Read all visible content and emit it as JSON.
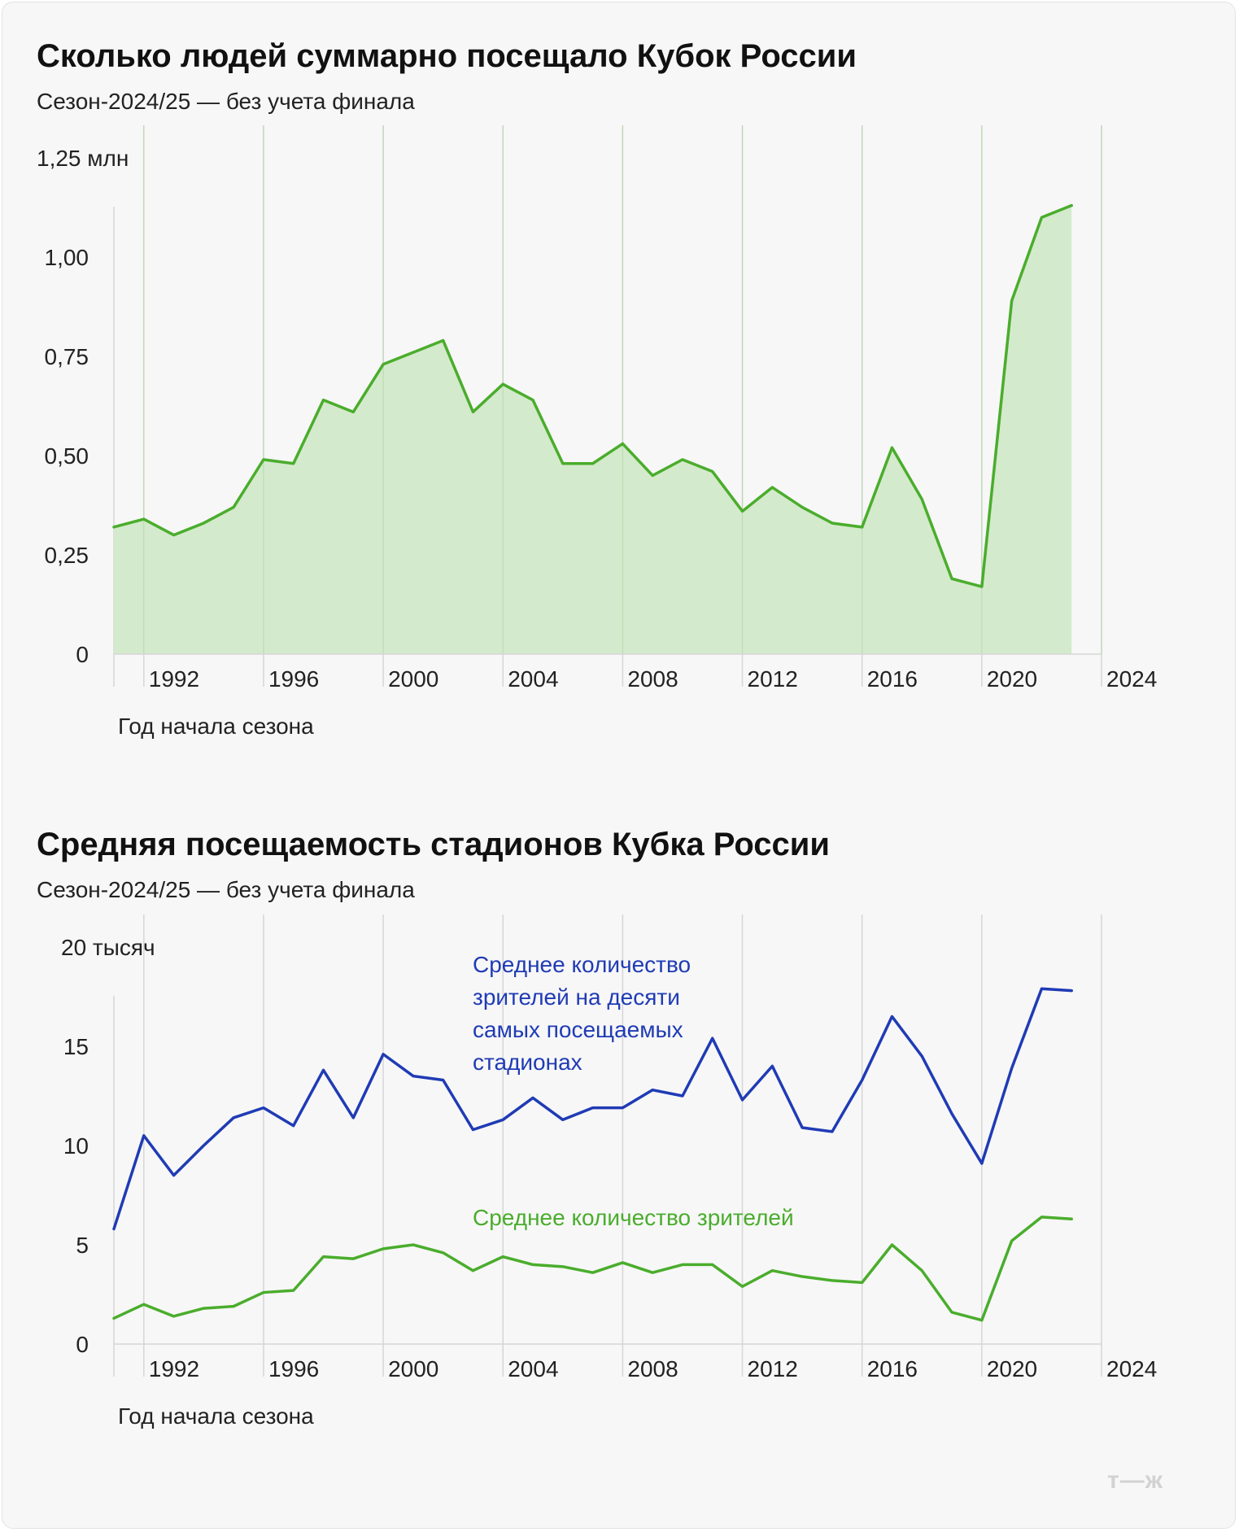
{
  "chart_data": [
    {
      "type": "area",
      "title": "Сколько людей суммарно посещало Кубок России",
      "subtitle": "Сезон-2024/25 — без учета финала",
      "xlabel": "Год начала сезона",
      "ylabel": "",
      "y_unit_label": "1,25 млн",
      "y_ticks": [
        "0",
        "0,25",
        "0,50",
        "0,75",
        "1,00"
      ],
      "y_tick_values": [
        0,
        0.25,
        0.5,
        0.75,
        1.0
      ],
      "x_ticks": [
        "1992",
        "1996",
        "2000",
        "2004",
        "2008",
        "2012",
        "2016",
        "2020",
        "2024"
      ],
      "x_tick_values": [
        1992,
        1996,
        2000,
        2004,
        2008,
        2012,
        2016,
        2020,
        2024
      ],
      "xlim": [
        1991,
        2024
      ],
      "ylim": [
        0,
        1.25
      ],
      "grid": "vertical",
      "color": "#4aad2c",
      "fill_color": "#d4eacc",
      "series": [
        {
          "x": [
            1991,
            1992,
            1993,
            1994,
            1995,
            1996,
            1997,
            1998,
            1999,
            2000,
            2001,
            2002,
            2003,
            2004,
            2005,
            2006,
            2007,
            2008,
            2009,
            2010,
            2011,
            2012,
            2013,
            2014,
            2015,
            2016,
            2017,
            2018,
            2019,
            2020,
            2021,
            2022,
            2023
          ],
          "values": [
            0.32,
            0.34,
            0.3,
            0.33,
            0.37,
            0.49,
            0.48,
            0.64,
            0.61,
            0.73,
            0.76,
            0.79,
            0.61,
            0.68,
            0.64,
            0.48,
            0.48,
            0.53,
            0.45,
            0.49,
            0.46,
            0.36,
            0.42,
            0.37,
            0.33,
            0.32,
            0.52,
            0.39,
            0.19,
            0.17,
            0.89,
            1.1,
            1.13
          ]
        }
      ]
    },
    {
      "type": "line",
      "title": "Средняя посещаемость стадионов Кубка России",
      "subtitle": "Сезон-2024/25 — без учета финала",
      "xlabel": "Год начала сезона",
      "ylabel": "",
      "y_unit_label": "20 тысяч",
      "y_ticks": [
        "0",
        "5",
        "10",
        "15"
      ],
      "y_tick_values": [
        0,
        5,
        10,
        15
      ],
      "x_ticks": [
        "1992",
        "1996",
        "2000",
        "2004",
        "2008",
        "2012",
        "2016",
        "2020",
        "2024"
      ],
      "x_tick_values": [
        1992,
        1996,
        2000,
        2004,
        2008,
        2012,
        2016,
        2020,
        2024
      ],
      "xlim": [
        1991,
        2024
      ],
      "ylim": [
        0,
        20
      ],
      "grid": "vertical",
      "series": [
        {
          "name": "Среднее количество зрителей на десяти самых посещаемых стадионах",
          "label_lines": [
            "Среднее количество",
            "зрителей на десяти",
            "самых посещаемых",
            "стадионах"
          ],
          "color": "#1f3bb5",
          "x": [
            1991,
            1992,
            1993,
            1994,
            1995,
            1996,
            1997,
            1998,
            1999,
            2000,
            2001,
            2002,
            2003,
            2004,
            2005,
            2006,
            2007,
            2008,
            2009,
            2010,
            2011,
            2012,
            2013,
            2014,
            2015,
            2016,
            2017,
            2018,
            2019,
            2020,
            2021,
            2022,
            2023
          ],
          "values": [
            5.8,
            10.5,
            8.5,
            10.0,
            11.4,
            11.9,
            11.0,
            13.8,
            11.4,
            14.6,
            13.5,
            13.3,
            10.8,
            11.3,
            12.4,
            11.3,
            11.9,
            11.9,
            12.8,
            12.5,
            15.4,
            12.3,
            14.0,
            10.9,
            10.7,
            13.3,
            16.5,
            14.5,
            11.6,
            9.1,
            13.9,
            17.9,
            17.8
          ]
        },
        {
          "name": "Среднее количество зрителей",
          "label_lines": [
            "Среднее количество зрителей"
          ],
          "color": "#4aad2c",
          "x": [
            1991,
            1992,
            1993,
            1994,
            1995,
            1996,
            1997,
            1998,
            1999,
            2000,
            2001,
            2002,
            2003,
            2004,
            2005,
            2006,
            2007,
            2008,
            2009,
            2010,
            2011,
            2012,
            2013,
            2014,
            2015,
            2016,
            2017,
            2018,
            2019,
            2020,
            2021,
            2022,
            2023
          ],
          "values": [
            1.3,
            2.0,
            1.4,
            1.8,
            1.9,
            2.6,
            2.7,
            4.4,
            4.3,
            4.8,
            5.0,
            4.6,
            3.7,
            4.4,
            4.0,
            3.9,
            3.6,
            4.1,
            3.6,
            4.0,
            4.0,
            2.9,
            3.7,
            3.4,
            3.2,
            3.1,
            5.0,
            3.7,
            1.6,
            1.2,
            5.2,
            6.4,
            6.3
          ]
        }
      ]
    }
  ],
  "brand": {
    "logo_text": "т—ж"
  }
}
